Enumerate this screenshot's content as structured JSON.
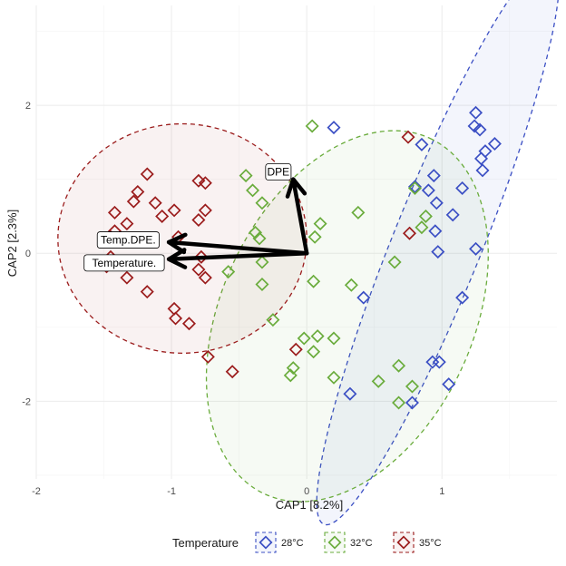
{
  "chart_data": {
    "type": "scatter",
    "xlabel": "CAP1 [8.2%]",
    "ylabel": "CAP2 [2.3%]",
    "xlim": [
      -2.0,
      1.85
    ],
    "ylim": [
      -3.05,
      3.35
    ],
    "x_ticks": [
      -2,
      -1,
      0,
      1
    ],
    "y_ticks": [
      -2,
      0,
      2
    ],
    "grid": true,
    "legend": {
      "title": "Temperature",
      "position": "bottom",
      "entries": [
        "28°C",
        "32°C",
        "35°C"
      ]
    },
    "colors": {
      "28°C": "#3b4fc4",
      "32°C": "#6aac3c",
      "35°C": "#9b1c1c"
    },
    "series": [
      {
        "name": "28°C",
        "ellipse": {
          "cx": 0.97,
          "cy": 0.15,
          "rx": 2.25,
          "ry": 0.6,
          "angle_deg": -68
        },
        "points": [
          [
            1.25,
            1.9
          ],
          [
            1.24,
            1.72
          ],
          [
            1.28,
            1.67
          ],
          [
            1.32,
            1.38
          ],
          [
            1.39,
            1.48
          ],
          [
            1.29,
            1.28
          ],
          [
            1.3,
            1.12
          ],
          [
            1.15,
            0.88
          ],
          [
            0.94,
            1.05
          ],
          [
            0.85,
            1.47
          ],
          [
            0.8,
            0.9
          ],
          [
            0.9,
            0.85
          ],
          [
            0.96,
            0.68
          ],
          [
            1.08,
            0.52
          ],
          [
            0.95,
            0.3
          ],
          [
            0.97,
            0.02
          ],
          [
            1.25,
            0.06
          ],
          [
            1.15,
            -0.6
          ],
          [
            0.42,
            -0.6
          ],
          [
            0.2,
            1.7
          ],
          [
            0.93,
            -1.47
          ],
          [
            0.98,
            -1.47
          ],
          [
            1.05,
            -1.77
          ],
          [
            0.78,
            -2.02
          ],
          [
            0.32,
            -1.9
          ]
        ]
      },
      {
        "name": "32°C",
        "ellipse": {
          "cx": 0.3,
          "cy": -0.85,
          "rx": 1.45,
          "ry": 1.7,
          "angle_deg": -65
        },
        "points": [
          [
            0.04,
            1.72
          ],
          [
            -0.45,
            1.05
          ],
          [
            -0.4,
            0.85
          ],
          [
            -0.33,
            0.68
          ],
          [
            -0.38,
            0.28
          ],
          [
            -0.35,
            0.2
          ],
          [
            -0.33,
            -0.12
          ],
          [
            -0.33,
            -0.42
          ],
          [
            -0.58,
            -0.25
          ],
          [
            -0.25,
            -0.9
          ],
          [
            0.1,
            0.4
          ],
          [
            0.06,
            0.22
          ],
          [
            0.05,
            -0.38
          ],
          [
            0.38,
            0.55
          ],
          [
            0.33,
            -0.43
          ],
          [
            0.8,
            0.88
          ],
          [
            0.88,
            0.5
          ],
          [
            0.85,
            0.35
          ],
          [
            0.65,
            -0.12
          ],
          [
            -0.02,
            -1.15
          ],
          [
            0.08,
            -1.12
          ],
          [
            0.2,
            -1.15
          ],
          [
            0.05,
            -1.33
          ],
          [
            -0.1,
            -1.55
          ],
          [
            -0.12,
            -1.65
          ],
          [
            0.2,
            -1.68
          ],
          [
            0.53,
            -1.73
          ],
          [
            0.68,
            -1.52
          ],
          [
            0.78,
            -1.8
          ],
          [
            0.68,
            -2.02
          ]
        ]
      },
      {
        "name": "35°C",
        "ellipse": {
          "cx": -0.92,
          "cy": 0.2,
          "rx": 0.92,
          "ry": 1.55,
          "angle_deg": 0
        },
        "points": [
          [
            -1.18,
            1.07
          ],
          [
            -1.25,
            0.83
          ],
          [
            -1.28,
            0.7
          ],
          [
            -1.12,
            0.68
          ],
          [
            -1.07,
            0.5
          ],
          [
            -1.42,
            0.55
          ],
          [
            -1.33,
            0.4
          ],
          [
            -1.42,
            0.3
          ],
          [
            -1.45,
            0.22
          ],
          [
            -1.45,
            -0.05
          ],
          [
            -1.48,
            -0.18
          ],
          [
            -1.33,
            -0.33
          ],
          [
            -1.18,
            -0.52
          ],
          [
            -0.75,
            0.95
          ],
          [
            -0.8,
            0.98
          ],
          [
            -0.75,
            0.58
          ],
          [
            -0.8,
            0.45
          ],
          [
            -0.98,
            0.58
          ],
          [
            -0.95,
            0.22
          ],
          [
            -0.78,
            -0.05
          ],
          [
            -0.75,
            -0.33
          ],
          [
            -0.8,
            -0.22
          ],
          [
            -0.98,
            -0.75
          ],
          [
            -0.97,
            -0.88
          ],
          [
            -0.87,
            -0.95
          ],
          [
            -0.73,
            -1.4
          ],
          [
            -0.55,
            -1.6
          ],
          [
            -0.08,
            -1.3
          ],
          [
            0.75,
            1.57
          ],
          [
            0.76,
            0.27
          ]
        ]
      }
    ],
    "arrows": [
      {
        "label": "DPE",
        "x": -0.1,
        "y": 1.0,
        "label_x": -0.21,
        "label_y": 1.1
      },
      {
        "label": "Temp.DPE.",
        "x": -1.02,
        "y": 0.15,
        "label_x": -1.32,
        "label_y": 0.18
      },
      {
        "label": "Temperature.",
        "x": -1.02,
        "y": -0.08,
        "label_x": -1.35,
        "label_y": -0.13
      }
    ],
    "arrow_origin": [
      0.0,
      0.0
    ]
  }
}
